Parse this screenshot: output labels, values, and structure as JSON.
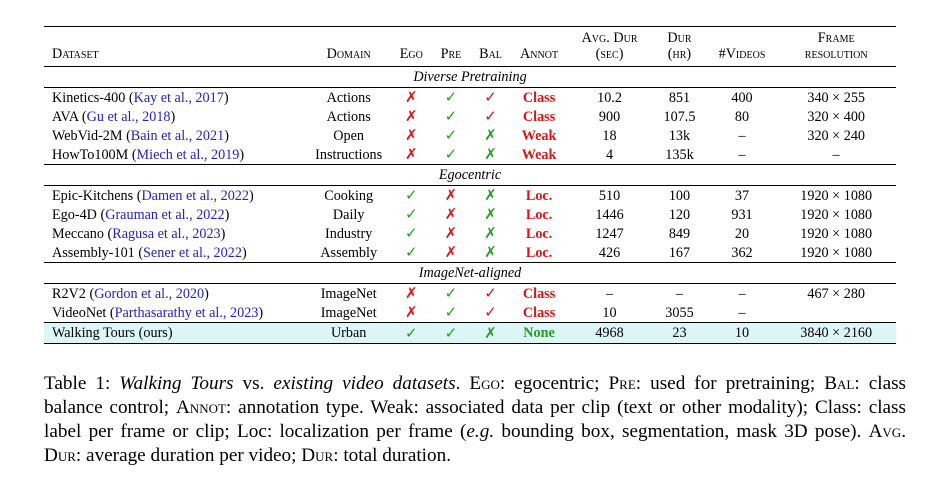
{
  "table": {
    "headers": {
      "dataset": "Dataset",
      "domain": "Domain",
      "ego": "Ego",
      "pre": "Pre",
      "bal": "Bal",
      "annot": "Annot",
      "avg_dur_1": "Avg. Dur",
      "avg_dur_2": "(sec)",
      "dur_1": "Dur",
      "dur_2": "(hr)",
      "videos": "#Videos",
      "frame_1": "Frame",
      "frame_2": "resolution"
    },
    "groups": [
      {
        "title": "Diverse Pretraining",
        "rows": [
          {
            "name": "Kinetics-400 ",
            "cite": "Kay et al., 2017",
            "domain": "Actions",
            "ego": "✗",
            "pre": "✓",
            "bal": "✓",
            "annot": "Class",
            "avg_dur": "10.2",
            "dur": "851",
            "videos": "400",
            "res": "340 × 255"
          },
          {
            "name": "AVA ",
            "cite": "Gu et al., 2018",
            "domain": "Actions",
            "ego": "✗",
            "pre": "✓",
            "bal": "✓",
            "annot": "Class",
            "avg_dur": "900",
            "dur": "107.5",
            "videos": "80",
            "res": "320 × 400"
          },
          {
            "name": "WebVid-2M ",
            "cite": "Bain et al., 2021",
            "domain": "Open",
            "ego": "✗",
            "pre": "✓",
            "bal": "✗",
            "annot": "Weak",
            "avg_dur": "18",
            "dur": "13k",
            "videos": "–",
            "res": "320 × 240"
          },
          {
            "name": "HowTo100M ",
            "cite": "Miech et al., 2019",
            "domain": "Instructions",
            "ego": "✗",
            "pre": "✓",
            "bal": "✗",
            "annot": "Weak",
            "avg_dur": "4",
            "dur": "135k",
            "videos": "–",
            "res": "–"
          }
        ]
      },
      {
        "title": "Egocentric",
        "rows": [
          {
            "name": "Epic-Kitchens ",
            "cite": "Damen et al., 2022",
            "domain": "Cooking",
            "ego": "✓",
            "pre": "✗",
            "bal": "✗",
            "annot": "Loc.",
            "avg_dur": "510",
            "dur": "100",
            "videos": "37",
            "res": "1920 × 1080"
          },
          {
            "name": "Ego-4D ",
            "cite": "Grauman et al., 2022",
            "domain": "Daily",
            "ego": "✓",
            "pre": "✗",
            "bal": "✗",
            "annot": "Loc.",
            "avg_dur": "1446",
            "dur": "120",
            "videos": "931",
            "res": "1920 × 1080"
          },
          {
            "name": "Meccano ",
            "cite": "Ragusa et al., 2023",
            "domain": "Industry",
            "ego": "✓",
            "pre": "✗",
            "bal": "✗",
            "annot": "Loc.",
            "avg_dur": "1247",
            "dur": "849",
            "videos": "20",
            "res": "1920 × 1080"
          },
          {
            "name": "Assembly-101 ",
            "cite": "Sener et al., 2022",
            "domain": "Assembly",
            "ego": "✓",
            "pre": "✗",
            "bal": "✗",
            "annot": "Loc.",
            "avg_dur": "426",
            "dur": "167",
            "videos": "362",
            "res": "1920 × 1080"
          }
        ]
      },
      {
        "title": "ImageNet-aligned",
        "rows": [
          {
            "name": "R2V2 ",
            "cite": "Gordon et al., 2020",
            "domain": "ImageNet",
            "ego": "✗",
            "pre": "✓",
            "bal": "✓",
            "annot": "Class",
            "avg_dur": "–",
            "dur": "–",
            "videos": "–",
            "res": "467 × 280"
          },
          {
            "name": "VideoNet ",
            "cite": "Parthasarathy et al., 2023",
            "domain": "ImageNet",
            "ego": "✗",
            "pre": "✓",
            "bal": "✓",
            "annot": "Class",
            "avg_dur": "10",
            "dur": "3055",
            "videos": "–",
            "res": ""
          }
        ]
      }
    ],
    "ours": {
      "name": "Walking Tours (ours)",
      "domain": "Urban",
      "ego": "✓",
      "pre": "✓",
      "bal": "✗",
      "annot": "None",
      "avg_dur": "4968",
      "dur": "23",
      "videos": "10",
      "res": "3840 × 2160"
    }
  },
  "caption": {
    "s1": "Table 1: ",
    "s2": "Walking Tours",
    "s3": " vs. ",
    "s4": "existing video datasets",
    "s5": ". ",
    "s6": "Ego",
    "s7": ": egocentric; ",
    "s8": "Pre",
    "s9": ": used for pretraining; ",
    "s10": "Bal",
    "s11": ": class balance control; ",
    "s12": "Annot",
    "s13": ": annotation type. Weak: associated data per clip (text or other modality); Class: class label per frame or clip; Loc: localization per frame (",
    "s14": "e.g.",
    "s15": " bounding box, segmentation, mask 3D pose). ",
    "s16": "Avg. Dur",
    "s17": ": average duration per video; ",
    "s18": "Dur",
    "s19": ": total duration."
  },
  "colors": {
    "check": "#20a020",
    "cross": "#e01212",
    "cite": "#2323c9",
    "highlight": "#dcf6f8"
  }
}
